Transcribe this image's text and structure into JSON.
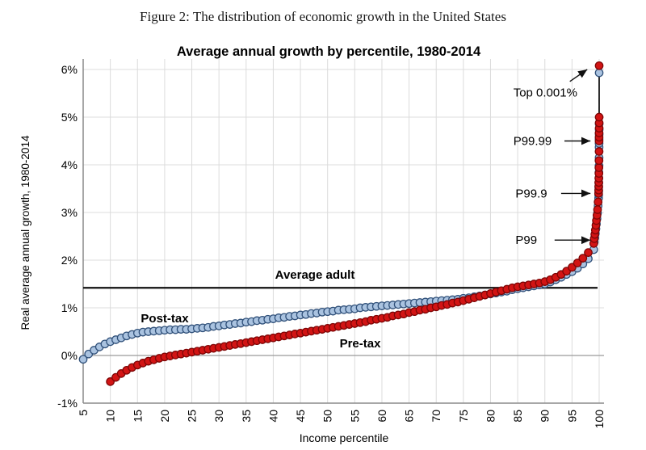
{
  "figure_caption": "Figure 2: The distribution of economic growth in the United States",
  "chart": {
    "title": "Average annual growth by percentile, 1980-2014",
    "x_axis_label": "Income percentile",
    "y_axis_label": "Real average annual growth, 1980-2014",
    "average_line_label": "Average adult",
    "post_tax_label": "Post-tax",
    "pre_tax_label": "Pre-tax"
  },
  "colors": {
    "background": "#ffffff",
    "grid": "#dcdcdc",
    "zero_line": "#9a9a9a",
    "axis_frame": "#8a8a8a",
    "average_line": "#111111",
    "post_tax_fill": "#aac3e0",
    "post_tax_edge": "#31517a",
    "post_tax_text": "#3b6396",
    "pre_tax_fill": "#d21414",
    "pre_tax_edge": "#7e0606",
    "pre_tax_text": "#d21414",
    "annotation": "#111111"
  },
  "chart_data": {
    "type": "scatter",
    "title": "Average annual growth by percentile, 1980-2014",
    "xlabel": "Income percentile",
    "ylabel": "Real average annual growth, 1980-2014",
    "xlim": [
      5,
      101
    ],
    "ylim": [
      -1.1,
      6.2
    ],
    "grid": true,
    "x_ticks": [
      5,
      10,
      15,
      20,
      25,
      30,
      35,
      40,
      45,
      50,
      55,
      60,
      65,
      70,
      75,
      80,
      85,
      90,
      95,
      100
    ],
    "y_ticks": [
      "6%",
      "5%",
      "4%",
      "3%",
      "2%",
      "1%",
      "0%",
      "-1%"
    ],
    "y_tick_values": [
      6,
      5,
      4,
      3,
      2,
      1,
      0,
      -1
    ],
    "average_adult": {
      "label": "Average adult",
      "value_pct": 1.42
    },
    "annotations": [
      {
        "label": "Top 0.001%",
        "text_p": 84.2,
        "text_v": 5.52,
        "from_p": 94.6,
        "from_v": 5.75,
        "to_p": 97.8,
        "to_v": 6.0
      },
      {
        "label": "P99.99",
        "text_p": 84.2,
        "text_v": 4.5,
        "from_p": 93.6,
        "from_v": 4.5,
        "to_p": 98.4,
        "to_v": 4.5
      },
      {
        "label": "P99.9",
        "text_p": 84.6,
        "text_v": 3.4,
        "from_p": 93.0,
        "from_v": 3.4,
        "to_p": 98.4,
        "to_v": 3.4
      },
      {
        "label": "P99",
        "text_p": 84.6,
        "text_v": 2.42,
        "from_p": 91.8,
        "from_v": 2.42,
        "to_p": 98.4,
        "to_v": 2.42
      }
    ],
    "series": [
      {
        "name": "Post-tax",
        "marker_fill": "#aac3e0",
        "marker_edge": "#31517a",
        "x": [
          5,
          6,
          7,
          8,
          9,
          10,
          11,
          12,
          13,
          14,
          15,
          16,
          17,
          18,
          19,
          20,
          21,
          22,
          23,
          24,
          25,
          26,
          27,
          28,
          29,
          30,
          31,
          32,
          33,
          34,
          35,
          36,
          37,
          38,
          39,
          40,
          41,
          42,
          43,
          44,
          45,
          46,
          47,
          48,
          49,
          50,
          51,
          52,
          53,
          54,
          55,
          56,
          57,
          58,
          59,
          60,
          61,
          62,
          63,
          64,
          65,
          66,
          67,
          68,
          69,
          70,
          71,
          72,
          73,
          74,
          75,
          76,
          77,
          78,
          79,
          80,
          81,
          82,
          83,
          84,
          85,
          86,
          87,
          88,
          89,
          90,
          91,
          92,
          93,
          94,
          95,
          96,
          97,
          98,
          99,
          99.1,
          99.2,
          99.3,
          99.4,
          99.5,
          99.6,
          99.7,
          99.8,
          99.9,
          99.91,
          99.92,
          99.93,
          99.94,
          99.95,
          99.96,
          99.97,
          99.98,
          99.99,
          99.991,
          99.992,
          99.993,
          99.994,
          99.995,
          99.999
        ],
        "y": [
          -0.08,
          0.03,
          0.11,
          0.18,
          0.24,
          0.29,
          0.33,
          0.37,
          0.41,
          0.44,
          0.47,
          0.49,
          0.5,
          0.51,
          0.52,
          0.53,
          0.54,
          0.54,
          0.55,
          0.55,
          0.56,
          0.57,
          0.58,
          0.59,
          0.61,
          0.62,
          0.64,
          0.65,
          0.67,
          0.68,
          0.7,
          0.71,
          0.73,
          0.74,
          0.76,
          0.77,
          0.79,
          0.8,
          0.82,
          0.83,
          0.85,
          0.86,
          0.88,
          0.89,
          0.91,
          0.92,
          0.93,
          0.95,
          0.96,
          0.97,
          0.98,
          1.0,
          1.01,
          1.02,
          1.03,
          1.04,
          1.05,
          1.06,
          1.07,
          1.08,
          1.09,
          1.1,
          1.11,
          1.12,
          1.13,
          1.14,
          1.15,
          1.16,
          1.17,
          1.18,
          1.2,
          1.21,
          1.23,
          1.25,
          1.27,
          1.29,
          1.31,
          1.33,
          1.35,
          1.38,
          1.4,
          1.42,
          1.44,
          1.46,
          1.48,
          1.5,
          1.54,
          1.59,
          1.64,
          1.7,
          1.76,
          1.83,
          1.92,
          2.03,
          2.22,
          2.38,
          2.47,
          2.56,
          2.66,
          2.76,
          2.87,
          2.99,
          3.14,
          3.3,
          3.37,
          3.45,
          3.53,
          3.62,
          3.72,
          3.84,
          3.98,
          4.15,
          4.37,
          4.45,
          4.54,
          4.64,
          4.74,
          4.86,
          5.93
        ]
      },
      {
        "name": "Pre-tax",
        "marker_fill": "#d21414",
        "marker_edge": "#7e0606",
        "x": [
          10,
          11,
          12,
          13,
          14,
          15,
          16,
          17,
          18,
          19,
          20,
          21,
          22,
          23,
          24,
          25,
          26,
          27,
          28,
          29,
          30,
          31,
          32,
          33,
          34,
          35,
          36,
          37,
          38,
          39,
          40,
          41,
          42,
          43,
          44,
          45,
          46,
          47,
          48,
          49,
          50,
          51,
          52,
          53,
          54,
          55,
          56,
          57,
          58,
          59,
          60,
          61,
          62,
          63,
          64,
          65,
          66,
          67,
          68,
          69,
          70,
          71,
          72,
          73,
          74,
          75,
          76,
          77,
          78,
          79,
          80,
          81,
          82,
          83,
          84,
          85,
          86,
          87,
          88,
          89,
          90,
          91,
          92,
          93,
          94,
          95,
          96,
          97,
          98,
          99,
          99.1,
          99.2,
          99.3,
          99.4,
          99.5,
          99.6,
          99.7,
          99.8,
          99.9,
          99.91,
          99.92,
          99.93,
          99.94,
          99.95,
          99.96,
          99.97,
          99.98,
          99.99,
          99.991,
          99.992,
          99.993,
          99.994,
          99.995,
          99.999
        ],
        "y": [
          -0.55,
          -0.46,
          -0.38,
          -0.31,
          -0.25,
          -0.2,
          -0.16,
          -0.12,
          -0.09,
          -0.06,
          -0.03,
          -0.01,
          0.01,
          0.03,
          0.05,
          0.07,
          0.09,
          0.11,
          0.13,
          0.15,
          0.17,
          0.19,
          0.21,
          0.23,
          0.25,
          0.27,
          0.29,
          0.31,
          0.33,
          0.35,
          0.37,
          0.39,
          0.41,
          0.43,
          0.45,
          0.47,
          0.49,
          0.51,
          0.53,
          0.55,
          0.57,
          0.59,
          0.61,
          0.63,
          0.65,
          0.67,
          0.69,
          0.71,
          0.74,
          0.76,
          0.78,
          0.8,
          0.83,
          0.85,
          0.87,
          0.9,
          0.92,
          0.95,
          0.97,
          1.0,
          1.02,
          1.05,
          1.07,
          1.1,
          1.12,
          1.15,
          1.18,
          1.21,
          1.24,
          1.27,
          1.3,
          1.33,
          1.36,
          1.39,
          1.42,
          1.44,
          1.46,
          1.48,
          1.5,
          1.52,
          1.55,
          1.59,
          1.64,
          1.7,
          1.77,
          1.85,
          1.94,
          2.04,
          2.16,
          2.35,
          2.45,
          2.54,
          2.63,
          2.73,
          2.83,
          2.94,
          3.06,
          3.22,
          3.4,
          3.47,
          3.55,
          3.63,
          3.72,
          3.82,
          3.94,
          4.09,
          4.28,
          4.5,
          4.58,
          4.67,
          4.77,
          4.88,
          5.0,
          6.08
        ]
      }
    ]
  }
}
